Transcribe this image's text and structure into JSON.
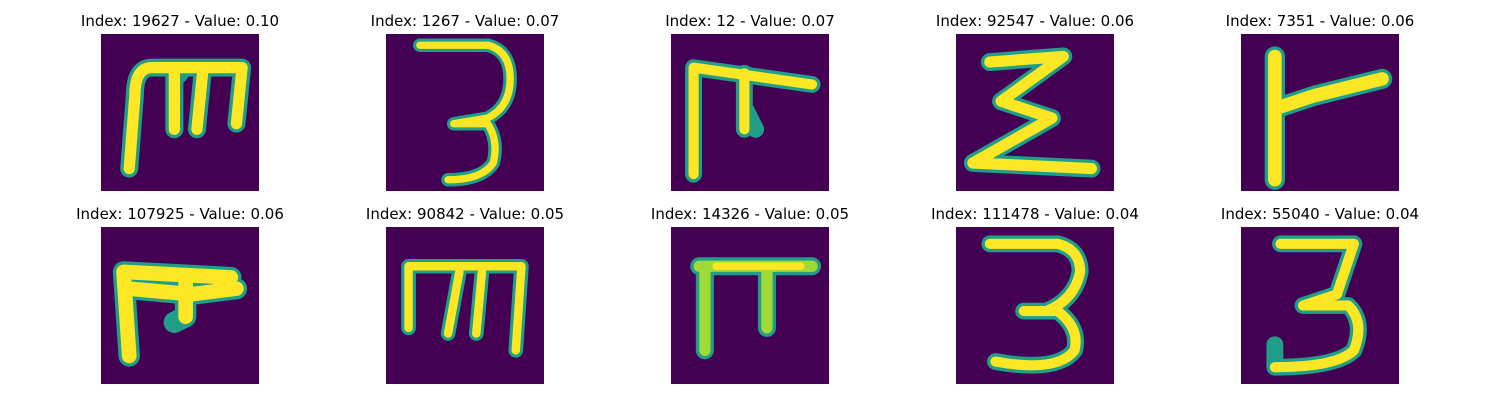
{
  "colors": {
    "background": "#ffffff",
    "image_background": "#440154",
    "stroke_core": "#fde725",
    "stroke_mid": "#a0da39",
    "stroke_edge": "#1f9e89"
  },
  "images": [
    {
      "title": "Index: 19627 - Value: 0.10",
      "glyph": "m-bar"
    },
    {
      "title": "Index: 1267 - Value: 0.07",
      "glyph": "three"
    },
    {
      "title": "Index: 12 - Value: 0.07",
      "glyph": "pi-hook"
    },
    {
      "title": "Index: 92547 - Value: 0.06",
      "glyph": "sigma"
    },
    {
      "title": "Index: 7351 - Value: 0.06",
      "glyph": "gamma-arrow"
    },
    {
      "title": "Index: 107925 - Value: 0.06",
      "glyph": "pi-hook-bold"
    },
    {
      "title": "Index: 90842 - Value: 0.05",
      "glyph": "m-bar-wide"
    },
    {
      "title": "Index: 14326 - Value: 0.05",
      "glyph": "pi"
    },
    {
      "title": "Index: 111478 - Value: 0.04",
      "glyph": "three-large"
    },
    {
      "title": "Index: 55040 - Value: 0.04",
      "glyph": "three-flat"
    }
  ]
}
